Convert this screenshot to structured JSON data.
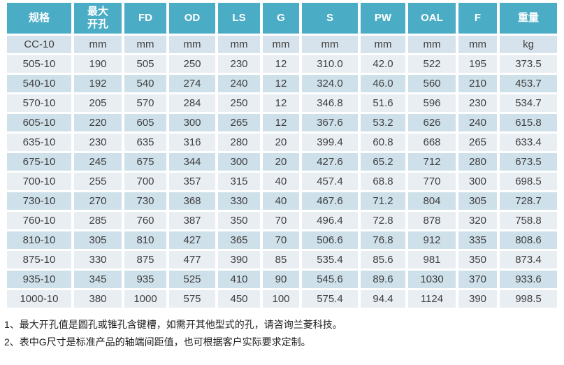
{
  "table": {
    "headers": [
      "规格",
      "最大\n开孔",
      "FD",
      "OD",
      "LS",
      "G",
      "S",
      "PW",
      "OAL",
      "F",
      "重量"
    ],
    "unit_row": [
      "CC-10",
      "mm",
      "mm",
      "mm",
      "mm",
      "mm",
      "mm",
      "mm",
      "mm",
      "mm",
      "kg"
    ],
    "rows": [
      [
        "505-10",
        "190",
        "505",
        "250",
        "230",
        "12",
        "310.0",
        "42.0",
        "522",
        "195",
        "373.5"
      ],
      [
        "540-10",
        "192",
        "540",
        "274",
        "240",
        "12",
        "324.0",
        "46.0",
        "560",
        "210",
        "453.7"
      ],
      [
        "570-10",
        "205",
        "570",
        "284",
        "250",
        "12",
        "346.8",
        "51.6",
        "596",
        "230",
        "534.7"
      ],
      [
        "605-10",
        "220",
        "605",
        "300",
        "265",
        "12",
        "367.6",
        "53.2",
        "626",
        "240",
        "615.8"
      ],
      [
        "635-10",
        "230",
        "635",
        "316",
        "280",
        "20",
        "399.4",
        "60.8",
        "668",
        "265",
        "633.4"
      ],
      [
        "675-10",
        "245",
        "675",
        "344",
        "300",
        "20",
        "427.6",
        "65.2",
        "712",
        "280",
        "673.5"
      ],
      [
        "700-10",
        "255",
        "700",
        "357",
        "315",
        "40",
        "457.4",
        "68.8",
        "770",
        "300",
        "698.5"
      ],
      [
        "730-10",
        "270",
        "730",
        "368",
        "330",
        "40",
        "467.6",
        "71.2",
        "804",
        "305",
        "728.7"
      ],
      [
        "760-10",
        "285",
        "760",
        "387",
        "350",
        "70",
        "496.4",
        "72.8",
        "878",
        "320",
        "758.8"
      ],
      [
        "810-10",
        "305",
        "810",
        "427",
        "365",
        "70",
        "506.6",
        "76.8",
        "912",
        "335",
        "808.6"
      ],
      [
        "875-10",
        "330",
        "875",
        "477",
        "390",
        "85",
        "535.4",
        "85.6",
        "981",
        "350",
        "873.4"
      ],
      [
        "935-10",
        "345",
        "935",
        "525",
        "410",
        "90",
        "545.6",
        "89.6",
        "1030",
        "370",
        "933.6"
      ],
      [
        "1000-10",
        "380",
        "1000",
        "575",
        "450",
        "100",
        "575.4",
        "94.4",
        "1124",
        "390",
        "998.5"
      ]
    ]
  },
  "notes": [
    "1、最大开孔值是圆孔或锥孔含键槽，如需开其他型式的孔，请咨询兰菱科技。",
    "2、表中G尺寸是标准产品的轴端间距值，也可根据客户实际要求定制。"
  ],
  "colors": {
    "header_bg": "#4BACC6",
    "header_text": "#FFFFFF",
    "row_light": "#E9EEF3",
    "row_dark": "#CEE0EA",
    "row_unit": "#D6E3EC",
    "cell_text": "#3F3F3F",
    "note_text": "#1A1A1A"
  }
}
